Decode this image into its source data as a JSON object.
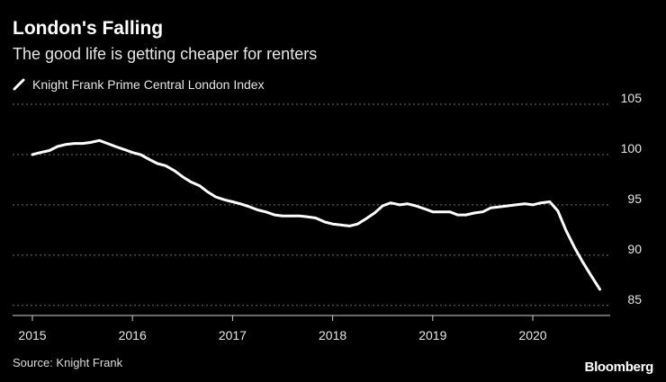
{
  "header": {
    "title": "London's Falling",
    "subtitle": "The good life is getting cheaper for renters"
  },
  "legend": {
    "label": "Knight Frank Prime Central London Index"
  },
  "footer": {
    "source": "Source: Knight Frank",
    "brand": "Bloomberg"
  },
  "colors": {
    "background": "#000000",
    "line": "#ffffff",
    "grid": "#6e6e6e",
    "axis": "#d0d0d0",
    "text": "#e6e6e6"
  },
  "chart_data": {
    "type": "line",
    "title": "London's Falling",
    "subtitle": "The good life is getting cheaper for renters",
    "xlabel": "",
    "ylabel": "",
    "xlim": [
      2015,
      2020.92
    ],
    "ylim": [
      84,
      105
    ],
    "grid": true,
    "legend_position": "top-left",
    "x_ticks": [
      2015,
      2016,
      2017,
      2018,
      2019,
      2020
    ],
    "x_tick_labels": [
      "2015",
      "2016",
      "2017",
      "2018",
      "2019",
      "2020"
    ],
    "y_ticks": [
      85,
      90,
      95,
      100,
      105
    ],
    "y_tick_labels": [
      "85",
      "90",
      "95",
      "100",
      "105"
    ],
    "y_axis_side": "right",
    "series": [
      {
        "name": "Knight Frank Prime Central London Index",
        "x": [
          2015.0,
          2015.08,
          2015.17,
          2015.25,
          2015.33,
          2015.42,
          2015.5,
          2015.58,
          2015.67,
          2015.75,
          2015.83,
          2015.92,
          2016.0,
          2016.08,
          2016.17,
          2016.25,
          2016.33,
          2016.42,
          2016.5,
          2016.58,
          2016.67,
          2016.75,
          2016.83,
          2016.92,
          2017.0,
          2017.08,
          2017.17,
          2017.25,
          2017.33,
          2017.42,
          2017.5,
          2017.58,
          2017.67,
          2017.75,
          2017.83,
          2017.92,
          2018.0,
          2018.08,
          2018.17,
          2018.25,
          2018.33,
          2018.42,
          2018.5,
          2018.58,
          2018.67,
          2018.75,
          2018.83,
          2018.92,
          2019.0,
          2019.08,
          2019.17,
          2019.25,
          2019.33,
          2019.42,
          2019.5,
          2019.58,
          2019.67,
          2019.75,
          2019.83,
          2019.92,
          2020.0,
          2020.08,
          2020.17,
          2020.25,
          2020.33,
          2020.42,
          2020.5,
          2020.58,
          2020.67
        ],
        "values": [
          100.0,
          100.2,
          100.4,
          100.8,
          101.0,
          101.1,
          101.1,
          101.2,
          101.4,
          101.1,
          100.8,
          100.5,
          100.2,
          100.0,
          99.5,
          99.1,
          98.9,
          98.4,
          97.8,
          97.3,
          96.9,
          96.3,
          95.8,
          95.5,
          95.3,
          95.1,
          94.8,
          94.5,
          94.3,
          94.0,
          93.9,
          93.9,
          93.9,
          93.8,
          93.7,
          93.3,
          93.1,
          93.0,
          92.9,
          93.1,
          93.6,
          94.2,
          94.9,
          95.2,
          95.0,
          95.1,
          94.9,
          94.6,
          94.3,
          94.3,
          94.3,
          94.0,
          94.0,
          94.2,
          94.3,
          94.7,
          94.8,
          94.9,
          95.0,
          95.1,
          95.0,
          95.2,
          95.3,
          94.4,
          92.5,
          90.7,
          89.3,
          88.0,
          86.6
        ]
      }
    ]
  }
}
